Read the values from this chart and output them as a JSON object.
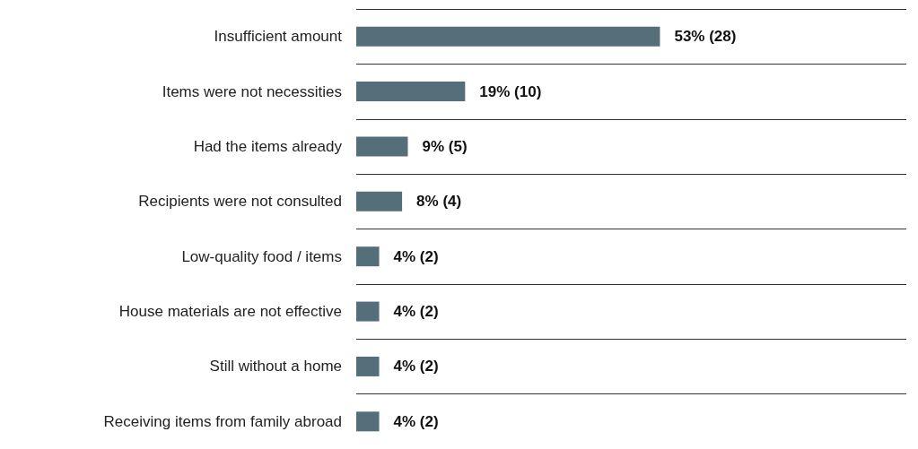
{
  "chart_data": {
    "type": "bar",
    "orientation": "horizontal",
    "categories": [
      "Insufficient amount",
      "Items were not necessities",
      "Had the items already",
      "Recipients were not consulted",
      "Low-quality food / items",
      "House materials are not effective",
      "Still without a home",
      "Receiving items from family abroad"
    ],
    "values": [
      53,
      19,
      9,
      8,
      4,
      4,
      4,
      4
    ],
    "value_labels": [
      "53% (28)",
      "19% (10)",
      "9% (5)",
      "8% (4)",
      "4% (2)",
      "4% (2)",
      "4% (2)",
      "4% (2)"
    ],
    "color": "#546e7a",
    "xlim": [
      0,
      96
    ],
    "grid": "y",
    "tick_labels": "y"
  }
}
